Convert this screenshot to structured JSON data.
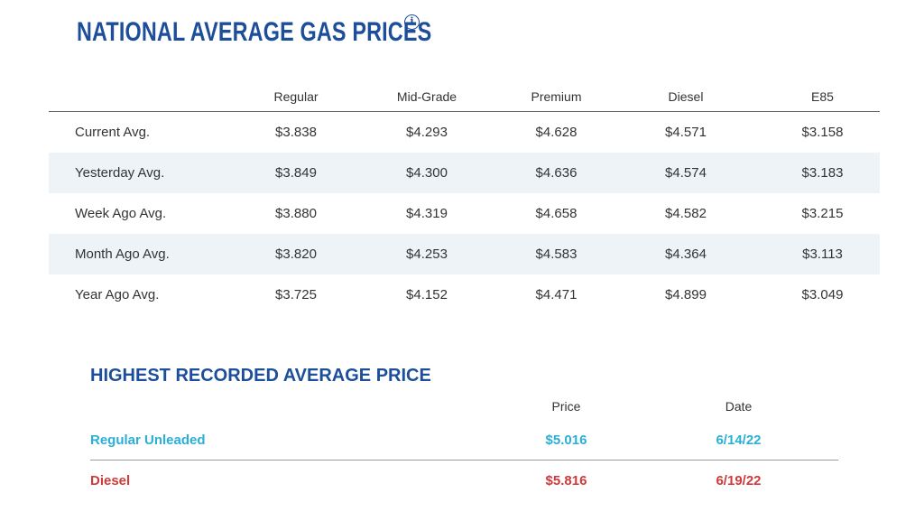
{
  "header": {
    "title": "NATIONAL AVERAGE GAS PRICES",
    "info_glyph": "i"
  },
  "prices": {
    "columns": [
      "",
      "Regular",
      "Mid-Grade",
      "Premium",
      "Diesel",
      "E85"
    ],
    "rows": [
      {
        "label": "Current Avg.",
        "values": [
          "$3.838",
          "$4.293",
          "$4.628",
          "$4.571",
          "$3.158"
        ]
      },
      {
        "label": "Yesterday Avg.",
        "values": [
          "$3.849",
          "$4.300",
          "$4.636",
          "$4.574",
          "$3.183"
        ]
      },
      {
        "label": "Week Ago Avg.",
        "values": [
          "$3.880",
          "$4.319",
          "$4.658",
          "$4.582",
          "$3.215"
        ]
      },
      {
        "label": "Month Ago Avg.",
        "values": [
          "$3.820",
          "$4.253",
          "$4.583",
          "$4.364",
          "$3.113"
        ]
      },
      {
        "label": "Year Ago Avg.",
        "values": [
          "$3.725",
          "$4.152",
          "$4.471",
          "$4.899",
          "$3.049"
        ]
      }
    ]
  },
  "highest": {
    "title": "HIGHEST RECORDED AVERAGE PRICE",
    "columns": [
      "",
      "Price",
      "Date"
    ],
    "rows": [
      {
        "label": "Regular Unleaded",
        "price": "$5.016",
        "date": "6/14/22"
      },
      {
        "label": "Diesel",
        "price": "$5.816",
        "date": "6/19/22"
      }
    ]
  },
  "colors": {
    "title": "#1d4e9a",
    "regular_unleaded": "#2aafd6",
    "diesel": "#d03a3a",
    "alt_row": "#eef3f8"
  }
}
